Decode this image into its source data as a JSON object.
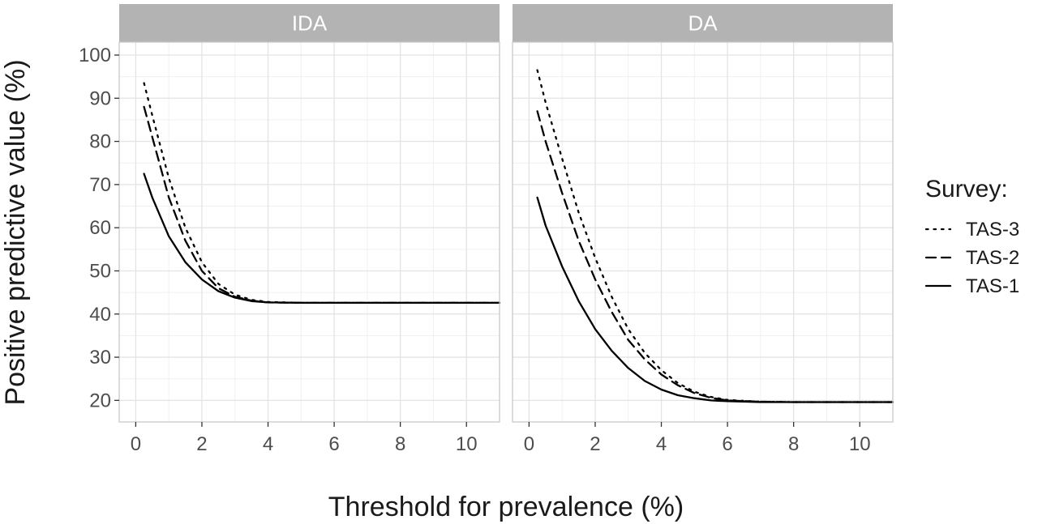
{
  "chart_data": {
    "type": "line",
    "xlabel": "Threshold for prevalence (%)",
    "ylabel": "Positive predictive value (%)",
    "xlim": [
      -0.5,
      11
    ],
    "ylim": [
      15,
      103
    ],
    "x_ticks": [
      0,
      2,
      4,
      6,
      8,
      10
    ],
    "y_ticks": [
      20,
      30,
      40,
      50,
      60,
      70,
      80,
      90,
      100
    ],
    "grid": true,
    "legend": {
      "title": "Survey:",
      "placement": "right",
      "entries": [
        {
          "label": "TAS-3",
          "linetype": "dotted"
        },
        {
          "label": "TAS-2",
          "linetype": "dashed"
        },
        {
          "label": "TAS-1",
          "linetype": "solid"
        }
      ]
    },
    "panels": [
      {
        "title": "IDA",
        "series": [
          {
            "name": "TAS-3",
            "linetype": "dotted",
            "x": [
              0.25,
              0.5,
              1,
              1.5,
              2,
              2.5,
              3,
              3.5,
              4,
              5,
              6,
              8,
              10,
              11
            ],
            "y": [
              93.5,
              86,
              71.5,
              60,
              52,
              47,
              44.5,
              43.3,
              42.8,
              42.6,
              42.6,
              42.6,
              42.6,
              42.6
            ]
          },
          {
            "name": "TAS-2",
            "linetype": "dashed",
            "x": [
              0.25,
              0.5,
              1,
              1.5,
              2,
              2.5,
              3,
              3.5,
              4,
              5,
              6,
              8,
              10,
              11
            ],
            "y": [
              88,
              81,
              67,
              57,
              50,
              46,
              44,
              43.1,
              42.7,
              42.6,
              42.6,
              42.6,
              42.6,
              42.6
            ]
          },
          {
            "name": "TAS-1",
            "linetype": "solid",
            "x": [
              0.25,
              0.5,
              1,
              1.5,
              2,
              2.5,
              3,
              3.5,
              4,
              5,
              6,
              8,
              10,
              11
            ],
            "y": [
              72.5,
              67,
              58,
              52,
              48,
              45.3,
              43.8,
              43,
              42.7,
              42.6,
              42.6,
              42.6,
              42.6,
              42.6
            ]
          }
        ]
      },
      {
        "title": "DA",
        "series": [
          {
            "name": "TAS-3",
            "linetype": "dotted",
            "x": [
              0.25,
              0.5,
              1,
              1.5,
              2,
              2.5,
              3,
              3.5,
              4,
              4.5,
              5,
              5.5,
              6,
              7,
              8,
              10,
              11
            ],
            "y": [
              96.5,
              89,
              76,
              63.5,
              53,
              44,
              36.5,
              31,
              27,
              24,
              22,
              20.8,
              20.1,
              19.7,
              19.6,
              19.6,
              19.6
            ]
          },
          {
            "name": "TAS-2",
            "linetype": "dashed",
            "x": [
              0.25,
              0.5,
              1,
              1.5,
              2,
              2.5,
              3,
              3.5,
              4,
              4.5,
              5,
              5.5,
              6,
              7,
              8,
              10,
              11
            ],
            "y": [
              87,
              80,
              68,
              57,
              48,
              40.5,
              34,
              29.5,
              26,
              23.5,
              21.7,
              20.6,
              20,
              19.7,
              19.6,
              19.6,
              19.6
            ]
          },
          {
            "name": "TAS-1",
            "linetype": "solid",
            "x": [
              0.25,
              0.5,
              1,
              1.5,
              2,
              2.5,
              3,
              3.5,
              4,
              4.5,
              5,
              5.5,
              6,
              7,
              8,
              10,
              11
            ],
            "y": [
              67,
              60.5,
              51,
              43,
              36.5,
              31.5,
              27.5,
              24.5,
              22.5,
              21.2,
              20.5,
              20,
              19.8,
              19.6,
              19.6,
              19.6,
              19.6
            ]
          }
        ]
      }
    ]
  }
}
